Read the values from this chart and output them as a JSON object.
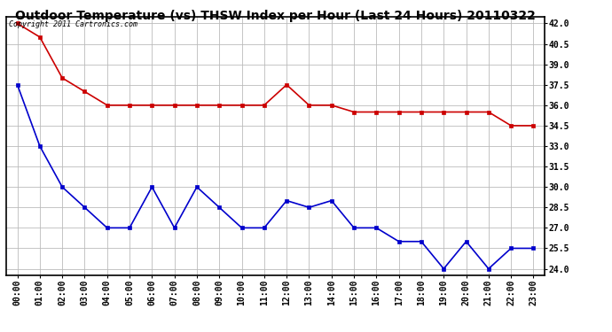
{
  "title": "Outdoor Temperature (vs) THSW Index per Hour (Last 24 Hours) 20110322",
  "copyright_text": "Copyright 2011 Cartronics.com",
  "hours": [
    "00:00",
    "01:00",
    "02:00",
    "03:00",
    "04:00",
    "05:00",
    "06:00",
    "07:00",
    "08:00",
    "09:00",
    "10:00",
    "11:00",
    "12:00",
    "13:00",
    "14:00",
    "15:00",
    "16:00",
    "17:00",
    "18:00",
    "19:00",
    "20:00",
    "21:00",
    "22:00",
    "23:00"
  ],
  "red_data": [
    42.0,
    41.0,
    38.0,
    37.0,
    36.0,
    36.0,
    36.0,
    36.0,
    36.0,
    36.0,
    36.0,
    36.0,
    37.5,
    36.0,
    36.0,
    35.5,
    35.5,
    35.5,
    35.5,
    35.5,
    35.5,
    35.5,
    34.5,
    34.5
  ],
  "blue_data": [
    37.5,
    33.0,
    30.0,
    28.5,
    27.0,
    27.0,
    30.0,
    27.0,
    30.0,
    28.5,
    27.0,
    27.0,
    29.0,
    28.5,
    29.0,
    27.0,
    27.0,
    26.0,
    26.0,
    24.0,
    26.0,
    24.0,
    25.5,
    25.5
  ],
  "ylim": [
    23.5,
    42.5
  ],
  "yticks": [
    24.0,
    25.5,
    27.0,
    28.5,
    30.0,
    31.5,
    33.0,
    34.5,
    36.0,
    37.5,
    39.0,
    40.5,
    42.0
  ],
  "background_color": "#ffffff",
  "plot_bg_color": "#ffffff",
  "red_color": "#cc0000",
  "blue_color": "#0000cc",
  "grid_color": "#bbbbbb",
  "title_fontsize": 10,
  "tick_fontsize": 7,
  "copyright_fontsize": 6
}
